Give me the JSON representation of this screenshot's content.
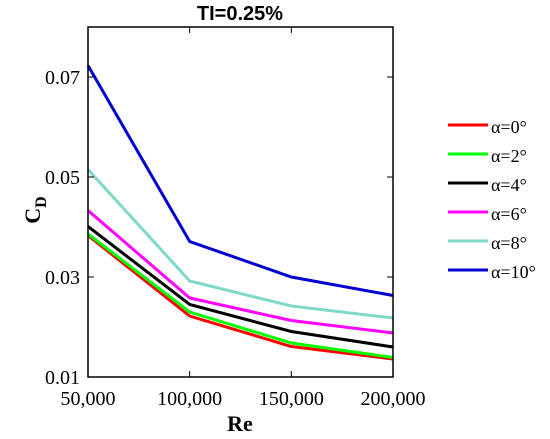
{
  "chart_data": {
    "type": "line",
    "title": "TI=0.25%",
    "xlabel": "Re",
    "ylabel_main": "C",
    "ylabel_sub": "D",
    "x": [
      50000,
      100000,
      150000,
      200000
    ],
    "xtick_labels": [
      "50,000",
      "100,000",
      "150,000",
      "200,000"
    ],
    "yticks": [
      0.01,
      0.03,
      0.05,
      0.07
    ],
    "ytick_labels": [
      "0.01",
      "0.03",
      "0.05",
      "0.07"
    ],
    "xlim": [
      50000,
      200000
    ],
    "ylim": [
      0.01,
      0.08
    ],
    "grid": false,
    "legend_position": "outside-right",
    "series": [
      {
        "name": "α=0°",
        "alpha": "0",
        "color": "#ff0000",
        "values": [
          0.0383,
          0.0222,
          0.0161,
          0.0136
        ]
      },
      {
        "name": "α=2°",
        "alpha": "2",
        "color": "#00ff00",
        "values": [
          0.0386,
          0.023,
          0.0168,
          0.0139
        ]
      },
      {
        "name": "α=4°",
        "alpha": "4",
        "color": "#000000",
        "values": [
          0.0401,
          0.0245,
          0.0191,
          0.016
        ]
      },
      {
        "name": "α=6°",
        "alpha": "6",
        "color": "#ff00ff",
        "values": [
          0.0433,
          0.0258,
          0.0213,
          0.0188
        ]
      },
      {
        "name": "α=8°",
        "alpha": "8",
        "color": "#80d8c8",
        "values": [
          0.0515,
          0.0292,
          0.0242,
          0.0218
        ]
      },
      {
        "name": "α=10°",
        "alpha": "10",
        "color": "#0000d0",
        "values": [
          0.0723,
          0.0371,
          0.03,
          0.0263
        ]
      }
    ]
  }
}
